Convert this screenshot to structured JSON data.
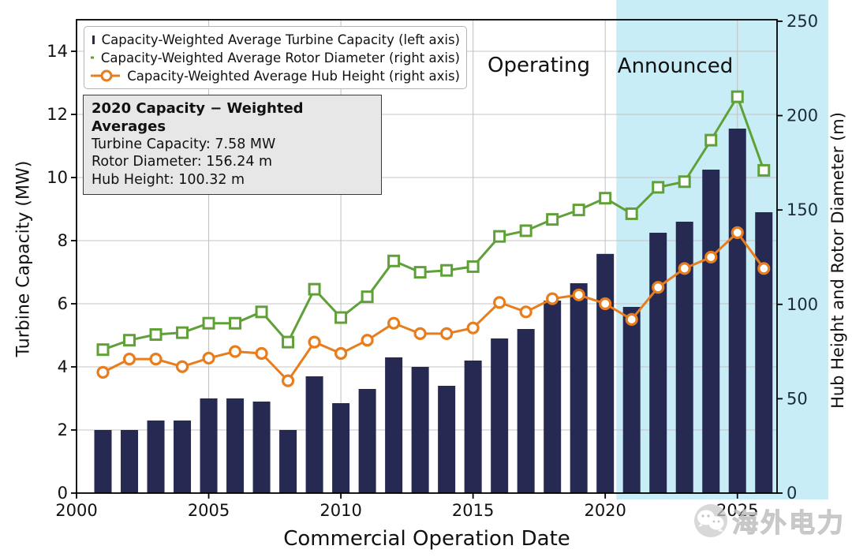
{
  "chart_data": {
    "type": "bar+line",
    "x": [
      2001,
      2002,
      2003,
      2004,
      2005,
      2006,
      2007,
      2008,
      2009,
      2010,
      2011,
      2012,
      2013,
      2014,
      2015,
      2016,
      2017,
      2018,
      2019,
      2020,
      2021,
      2022,
      2023,
      2024,
      2025,
      2026
    ],
    "series": [
      {
        "name": "Capacity-Weighted Average Turbine Capacity (left axis)",
        "type": "bar",
        "axis": "left",
        "marker": "rect",
        "color": "#262a52",
        "values": [
          2.0,
          2.0,
          2.3,
          2.3,
          3.0,
          3.0,
          2.9,
          2.0,
          3.7,
          2.85,
          3.3,
          4.3,
          4.0,
          3.4,
          4.2,
          4.9,
          5.2,
          6.1,
          6.65,
          7.58,
          5.9,
          8.25,
          8.6,
          10.25,
          11.55,
          8.9
        ]
      },
      {
        "name": "Capacity-Weighted Average Rotor Diameter (right axis)",
        "type": "line",
        "axis": "right",
        "marker": "square",
        "color": "#60a039",
        "values": [
          76,
          81,
          84,
          85,
          90,
          90,
          96,
          80,
          108,
          93,
          104,
          123,
          117,
          118,
          120,
          136,
          139,
          145,
          150,
          156.24,
          148,
          162,
          165,
          187,
          210,
          171
        ]
      },
      {
        "name": "Capacity-Weighted Average Hub Height (right axis)",
        "type": "line",
        "axis": "right",
        "marker": "circle",
        "color": "#e87d1e",
        "values": [
          64,
          71,
          71,
          67,
          71.5,
          75,
          74,
          59.5,
          80,
          74,
          81,
          90,
          84.5,
          84.5,
          87.5,
          101,
          96,
          103,
          105,
          100.32,
          92,
          109,
          119,
          125,
          138,
          119
        ]
      }
    ],
    "xlabel": "Commercial Operation Date",
    "ylabel_left": "Turbine Capacity (MW)",
    "ylabel_right": "Hub Height and Rotor Diameter (m)",
    "xlim": [
      2000,
      2026.5
    ],
    "ylim_left": [
      0,
      15
    ],
    "ylim_right": [
      0,
      250.8
    ],
    "xticks": [
      2000,
      2005,
      2010,
      2015,
      2020,
      2025
    ],
    "yticks_left": [
      0,
      2,
      4,
      6,
      8,
      10,
      12,
      14
    ],
    "yticks_right": [
      0,
      50,
      100,
      150,
      200,
      250
    ],
    "grid": true,
    "legend_position": "upper-left",
    "announced_region_start": 2020.42
  },
  "legend": {
    "items": [
      {
        "label": "Capacity-Weighted Average Turbine Capacity (left axis)"
      },
      {
        "label": "Capacity-Weighted Average Rotor Diameter (right axis)"
      },
      {
        "label": "Capacity-Weighted Average Hub Height (right axis)"
      }
    ]
  },
  "annotation_box": {
    "title": "2020 Capacity − Weighted Averages",
    "lines": [
      "Turbine Capacity: 7.58 MW",
      "Rotor Diameter: 156.24 m",
      "Hub Height: 100.32 m"
    ]
  },
  "region_labels": {
    "operating": "Operating",
    "announced": "Announced"
  },
  "watermark": {
    "text": "海外电力",
    "logo": "wechat-logo"
  },
  "colors": {
    "bar": "#262a52",
    "rotor_line": "#60a039",
    "hub_line": "#e87d1e",
    "announced_bg": "#c8edf6",
    "grid": "#c4c4c4",
    "annotation_bg": "#e7e7e7",
    "text": "#111111"
  }
}
